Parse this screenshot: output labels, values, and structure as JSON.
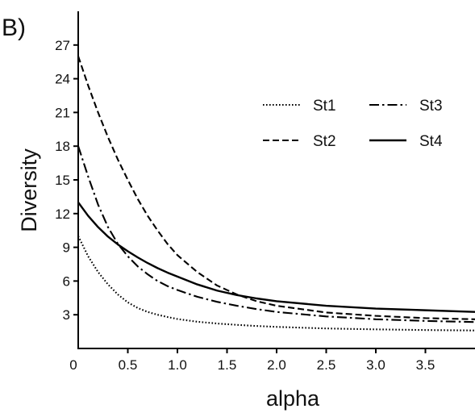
{
  "panel_label": "B)",
  "chart_data": {
    "type": "line",
    "title": "",
    "xlabel": "alpha",
    "ylabel": "Diversity",
    "xlim": [
      0,
      4.0
    ],
    "ylim": [
      0,
      30
    ],
    "x_ticks": [
      0.5,
      1.0,
      1.5,
      2.0,
      2.5,
      3.0,
      3.5
    ],
    "x_tick_labels": [
      "0.5",
      "1.0",
      "1.5",
      "2.0",
      "2.5",
      "3.0",
      "3.5"
    ],
    "x_origin_label": "0",
    "y_ticks": [
      3,
      6,
      9,
      12,
      15,
      18,
      21,
      24,
      27
    ],
    "y_tick_labels": [
      "3",
      "6",
      "9",
      "12",
      "15",
      "18",
      "21",
      "24",
      "27"
    ],
    "grid": false,
    "legend_position": "top-right",
    "series": [
      {
        "name": "St1",
        "dash": "dotted",
        "x": [
          0.0,
          0.1,
          0.2,
          0.3,
          0.4,
          0.5,
          0.6,
          0.7,
          0.8,
          0.9,
          1.0,
          1.2,
          1.4,
          1.6,
          1.8,
          2.0,
          2.5,
          3.0,
          3.5,
          4.0
        ],
        "y": [
          10.0,
          8.2,
          6.8,
          5.7,
          4.8,
          4.1,
          3.6,
          3.25,
          3.0,
          2.8,
          2.62,
          2.38,
          2.22,
          2.1,
          2.0,
          1.92,
          1.78,
          1.7,
          1.64,
          1.6
        ]
      },
      {
        "name": "St2",
        "dash": "dashed",
        "x": [
          0.0,
          0.1,
          0.2,
          0.3,
          0.4,
          0.5,
          0.6,
          0.7,
          0.8,
          0.9,
          1.0,
          1.2,
          1.4,
          1.6,
          1.8,
          2.0,
          2.5,
          3.0,
          3.5,
          4.0
        ],
        "y": [
          26.0,
          23.4,
          21.0,
          18.8,
          16.8,
          15.0,
          13.3,
          11.8,
          10.5,
          9.3,
          8.3,
          6.8,
          5.6,
          4.8,
          4.2,
          3.8,
          3.2,
          2.9,
          2.7,
          2.6
        ]
      },
      {
        "name": "St3",
        "dash": "dashdot",
        "x": [
          0.0,
          0.1,
          0.2,
          0.3,
          0.4,
          0.5,
          0.6,
          0.7,
          0.8,
          0.9,
          1.0,
          1.2,
          1.4,
          1.6,
          1.8,
          2.0,
          2.5,
          3.0,
          3.5,
          4.0
        ],
        "y": [
          18.0,
          15.3,
          12.8,
          10.8,
          9.3,
          8.2,
          7.3,
          6.6,
          6.0,
          5.55,
          5.2,
          4.6,
          4.15,
          3.8,
          3.5,
          3.25,
          2.85,
          2.6,
          2.45,
          2.35
        ]
      },
      {
        "name": "St4",
        "dash": "solid",
        "x": [
          0.0,
          0.1,
          0.2,
          0.3,
          0.4,
          0.5,
          0.6,
          0.7,
          0.8,
          0.9,
          1.0,
          1.2,
          1.4,
          1.6,
          1.8,
          2.0,
          2.5,
          3.0,
          3.5,
          4.0
        ],
        "y": [
          13.0,
          11.8,
          10.8,
          9.95,
          9.25,
          8.65,
          8.1,
          7.6,
          7.15,
          6.75,
          6.4,
          5.7,
          5.15,
          4.75,
          4.45,
          4.2,
          3.8,
          3.55,
          3.4,
          3.25
        ]
      }
    ]
  }
}
